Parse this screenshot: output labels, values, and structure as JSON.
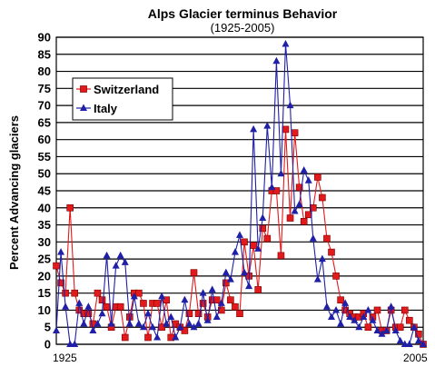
{
  "chart_data": {
    "type": "line",
    "title": "Alps Glacier terminus Behavior",
    "subtitle": "(1925-2005)",
    "ylabel": "Percent Advancing glaciers",
    "xlabel": "",
    "ylim": [
      0,
      90
    ],
    "yticks": [
      0,
      5,
      10,
      15,
      20,
      25,
      30,
      35,
      40,
      45,
      50,
      55,
      60,
      65,
      70,
      75,
      80,
      85,
      90
    ],
    "xlim": [
      1925,
      2005
    ],
    "xticks": [
      "1925",
      "2005"
    ],
    "grid": "horizontal",
    "legend_position": "upper-left",
    "series": [
      {
        "name": "Switzerland",
        "color": "#e31a1c",
        "marker": "square",
        "x": [
          1925,
          1926,
          1927,
          1928,
          1929,
          1930,
          1931,
          1932,
          1933,
          1934,
          1935,
          1936,
          1937,
          1938,
          1939,
          1940,
          1941,
          1942,
          1943,
          1944,
          1945,
          1946,
          1947,
          1948,
          1949,
          1950,
          1951,
          1952,
          1953,
          1954,
          1955,
          1956,
          1957,
          1958,
          1959,
          1960,
          1961,
          1962,
          1963,
          1964,
          1965,
          1966,
          1967,
          1968,
          1969,
          1970,
          1971,
          1972,
          1973,
          1974,
          1975,
          1976,
          1977,
          1978,
          1979,
          1980,
          1981,
          1982,
          1983,
          1984,
          1985,
          1986,
          1987,
          1988,
          1989,
          1990,
          1991,
          1992,
          1993,
          1994,
          1995,
          1996,
          1997,
          1998,
          1999,
          2000,
          2001,
          2002,
          2003,
          2004,
          2005
        ],
        "values": [
          23,
          18,
          15,
          40,
          15,
          10,
          9,
          9,
          6,
          15,
          13,
          11,
          5,
          11,
          11,
          2,
          8,
          15,
          15,
          12,
          2,
          12,
          12,
          5,
          13,
          2,
          6,
          5,
          4,
          9,
          21,
          9,
          12,
          8,
          13,
          13,
          10,
          18,
          13,
          11,
          9,
          30,
          20,
          29,
          16,
          34,
          31,
          45,
          45,
          26,
          63,
          37,
          62,
          46,
          36,
          38,
          40,
          49,
          43,
          31,
          27,
          20,
          13,
          10,
          9,
          8,
          8,
          9,
          5,
          8,
          10,
          4,
          4,
          10,
          5,
          5,
          10,
          7,
          5,
          3,
          0
        ],
        "markers": [
          23,
          18,
          15,
          40,
          15,
          10,
          9,
          9,
          6,
          15,
          13,
          11,
          5,
          11,
          11,
          2,
          8,
          15,
          15,
          12,
          2,
          12,
          12,
          5,
          13,
          2,
          6,
          5,
          4,
          9,
          21,
          9,
          12,
          8,
          13,
          13,
          10,
          18,
          13,
          11,
          9,
          30,
          20,
          29,
          16,
          34,
          31,
          45,
          45,
          26,
          63,
          37,
          62,
          46,
          36,
          38,
          40,
          49,
          43,
          31,
          27,
          20,
          13,
          10,
          9,
          8,
          8,
          9,
          5,
          8,
          10,
          4,
          4,
          10,
          5,
          5,
          10,
          7,
          5,
          3,
          0
        ]
      },
      {
        "name": "Italy",
        "color": "#1f1fa8",
        "marker": "triangle",
        "x": [
          1925,
          1926,
          1927,
          1928,
          1929,
          1930,
          1931,
          1932,
          1933,
          1934,
          1935,
          1936,
          1937,
          1938,
          1939,
          1940,
          1941,
          1942,
          1943,
          1944,
          1945,
          1946,
          1947,
          1948,
          1949,
          1950,
          1951,
          1952,
          1953,
          1954,
          1955,
          1956,
          1957,
          1958,
          1959,
          1960,
          1961,
          1962,
          1963,
          1964,
          1965,
          1966,
          1967,
          1968,
          1969,
          1970,
          1971,
          1972,
          1973,
          1974,
          1975,
          1976,
          1977,
          1978,
          1979,
          1980,
          1981,
          1982,
          1983,
          1984,
          1985,
          1986,
          1987,
          1988,
          1989,
          1990,
          1991,
          1992,
          1993,
          1994,
          1995,
          1996,
          1997,
          1998,
          1999,
          2000,
          2001,
          2002,
          2003,
          2004,
          2005
        ],
        "values": [
          4,
          27,
          11,
          0,
          0,
          12,
          6,
          11,
          4,
          6,
          9,
          26,
          6,
          23,
          26,
          24,
          6,
          14,
          6,
          5,
          9,
          5,
          2,
          14,
          6,
          8,
          2,
          5,
          13,
          6,
          5,
          6,
          15,
          7,
          16,
          8,
          12,
          21,
          19,
          27,
          32,
          21,
          17,
          63,
          28,
          37,
          64,
          46,
          83,
          50,
          88,
          70,
          39,
          41,
          51,
          48,
          31,
          19,
          25,
          11,
          8,
          10,
          6,
          12,
          8,
          7,
          5,
          8,
          10,
          7,
          4,
          3,
          4,
          11,
          4,
          1,
          0,
          0,
          5,
          1,
          0
        ]
      }
    ]
  }
}
